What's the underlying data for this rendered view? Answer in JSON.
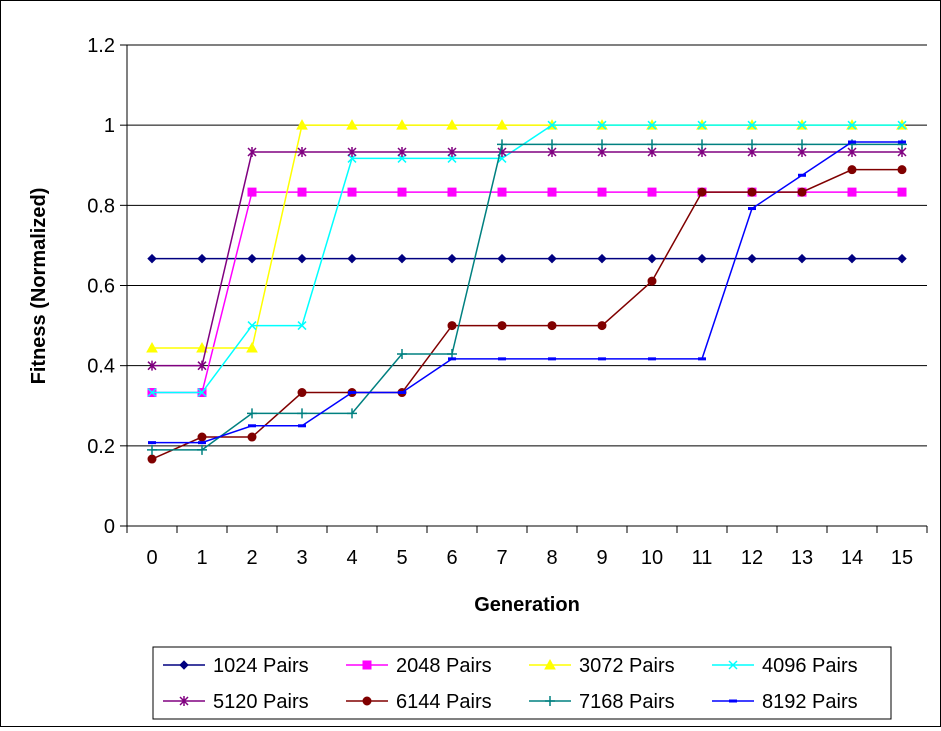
{
  "chart_data": {
    "type": "line",
    "title": "",
    "xlabel": "Generation",
    "ylabel": "Fitness (Normalized)",
    "x": [
      0,
      1,
      2,
      3,
      4,
      5,
      6,
      7,
      8,
      9,
      10,
      11,
      12,
      13,
      14,
      15
    ],
    "ylim": [
      0,
      1.2
    ],
    "yticks": [
      "0",
      "0.2",
      "0.4",
      "0.6",
      "0.8",
      "1",
      "1.2"
    ],
    "xticks": [
      "0",
      "1",
      "2",
      "3",
      "4",
      "5",
      "6",
      "7",
      "8",
      "9",
      "10",
      "11",
      "12",
      "13",
      "14",
      "15"
    ],
    "grid": "horizontal",
    "legend_position": "bottom",
    "series": [
      {
        "name": "1024 Pairs",
        "color": "#000080",
        "marker": "diamond",
        "values": [
          0.667,
          0.667,
          0.667,
          0.667,
          0.667,
          0.667,
          0.667,
          0.667,
          0.667,
          0.667,
          0.667,
          0.667,
          0.667,
          0.667,
          0.667,
          0.667
        ]
      },
      {
        "name": "2048 Pairs",
        "color": "#FF00FF",
        "marker": "square",
        "values": [
          0.333,
          0.333,
          0.833,
          0.833,
          0.833,
          0.833,
          0.833,
          0.833,
          0.833,
          0.833,
          0.833,
          0.833,
          0.833,
          0.833,
          0.833,
          0.833
        ]
      },
      {
        "name": "3072 Pairs",
        "color": "#FFFF00",
        "marker": "triangle",
        "values": [
          0.444,
          0.444,
          0.444,
          1.0,
          1.0,
          1.0,
          1.0,
          1.0,
          1.0,
          1.0,
          1.0,
          1.0,
          1.0,
          1.0,
          1.0,
          1.0
        ]
      },
      {
        "name": "4096 Pairs",
        "color": "#00FFFF",
        "marker": "x",
        "values": [
          0.333,
          0.333,
          0.5,
          0.5,
          0.917,
          0.917,
          0.917,
          0.917,
          1.0,
          1.0,
          1.0,
          1.0,
          1.0,
          1.0,
          1.0,
          1.0
        ]
      },
      {
        "name": "5120 Pairs",
        "color": "#800080",
        "marker": "star",
        "values": [
          0.4,
          0.4,
          0.933,
          0.933,
          0.933,
          0.933,
          0.933,
          0.933,
          0.933,
          0.933,
          0.933,
          0.933,
          0.933,
          0.933,
          0.933,
          0.933
        ]
      },
      {
        "name": "6144 Pairs",
        "color": "#800000",
        "marker": "circle",
        "values": [
          0.167,
          0.222,
          0.222,
          0.333,
          0.333,
          0.333,
          0.5,
          0.5,
          0.5,
          0.5,
          0.611,
          0.833,
          0.833,
          0.833,
          0.889,
          0.889
        ]
      },
      {
        "name": "7168 Pairs",
        "color": "#008080",
        "marker": "plus",
        "values": [
          0.19,
          0.19,
          0.281,
          0.281,
          0.281,
          0.429,
          0.429,
          0.952,
          0.952,
          0.952,
          0.952,
          0.952,
          0.952,
          0.952,
          0.952,
          0.952
        ]
      },
      {
        "name": "8192 Pairs",
        "color": "#0000FF",
        "marker": "dash",
        "values": [
          0.208,
          0.208,
          0.25,
          0.25,
          0.333,
          0.333,
          0.417,
          0.417,
          0.417,
          0.417,
          0.417,
          0.417,
          0.792,
          0.875,
          0.958,
          0.958
        ]
      }
    ]
  }
}
